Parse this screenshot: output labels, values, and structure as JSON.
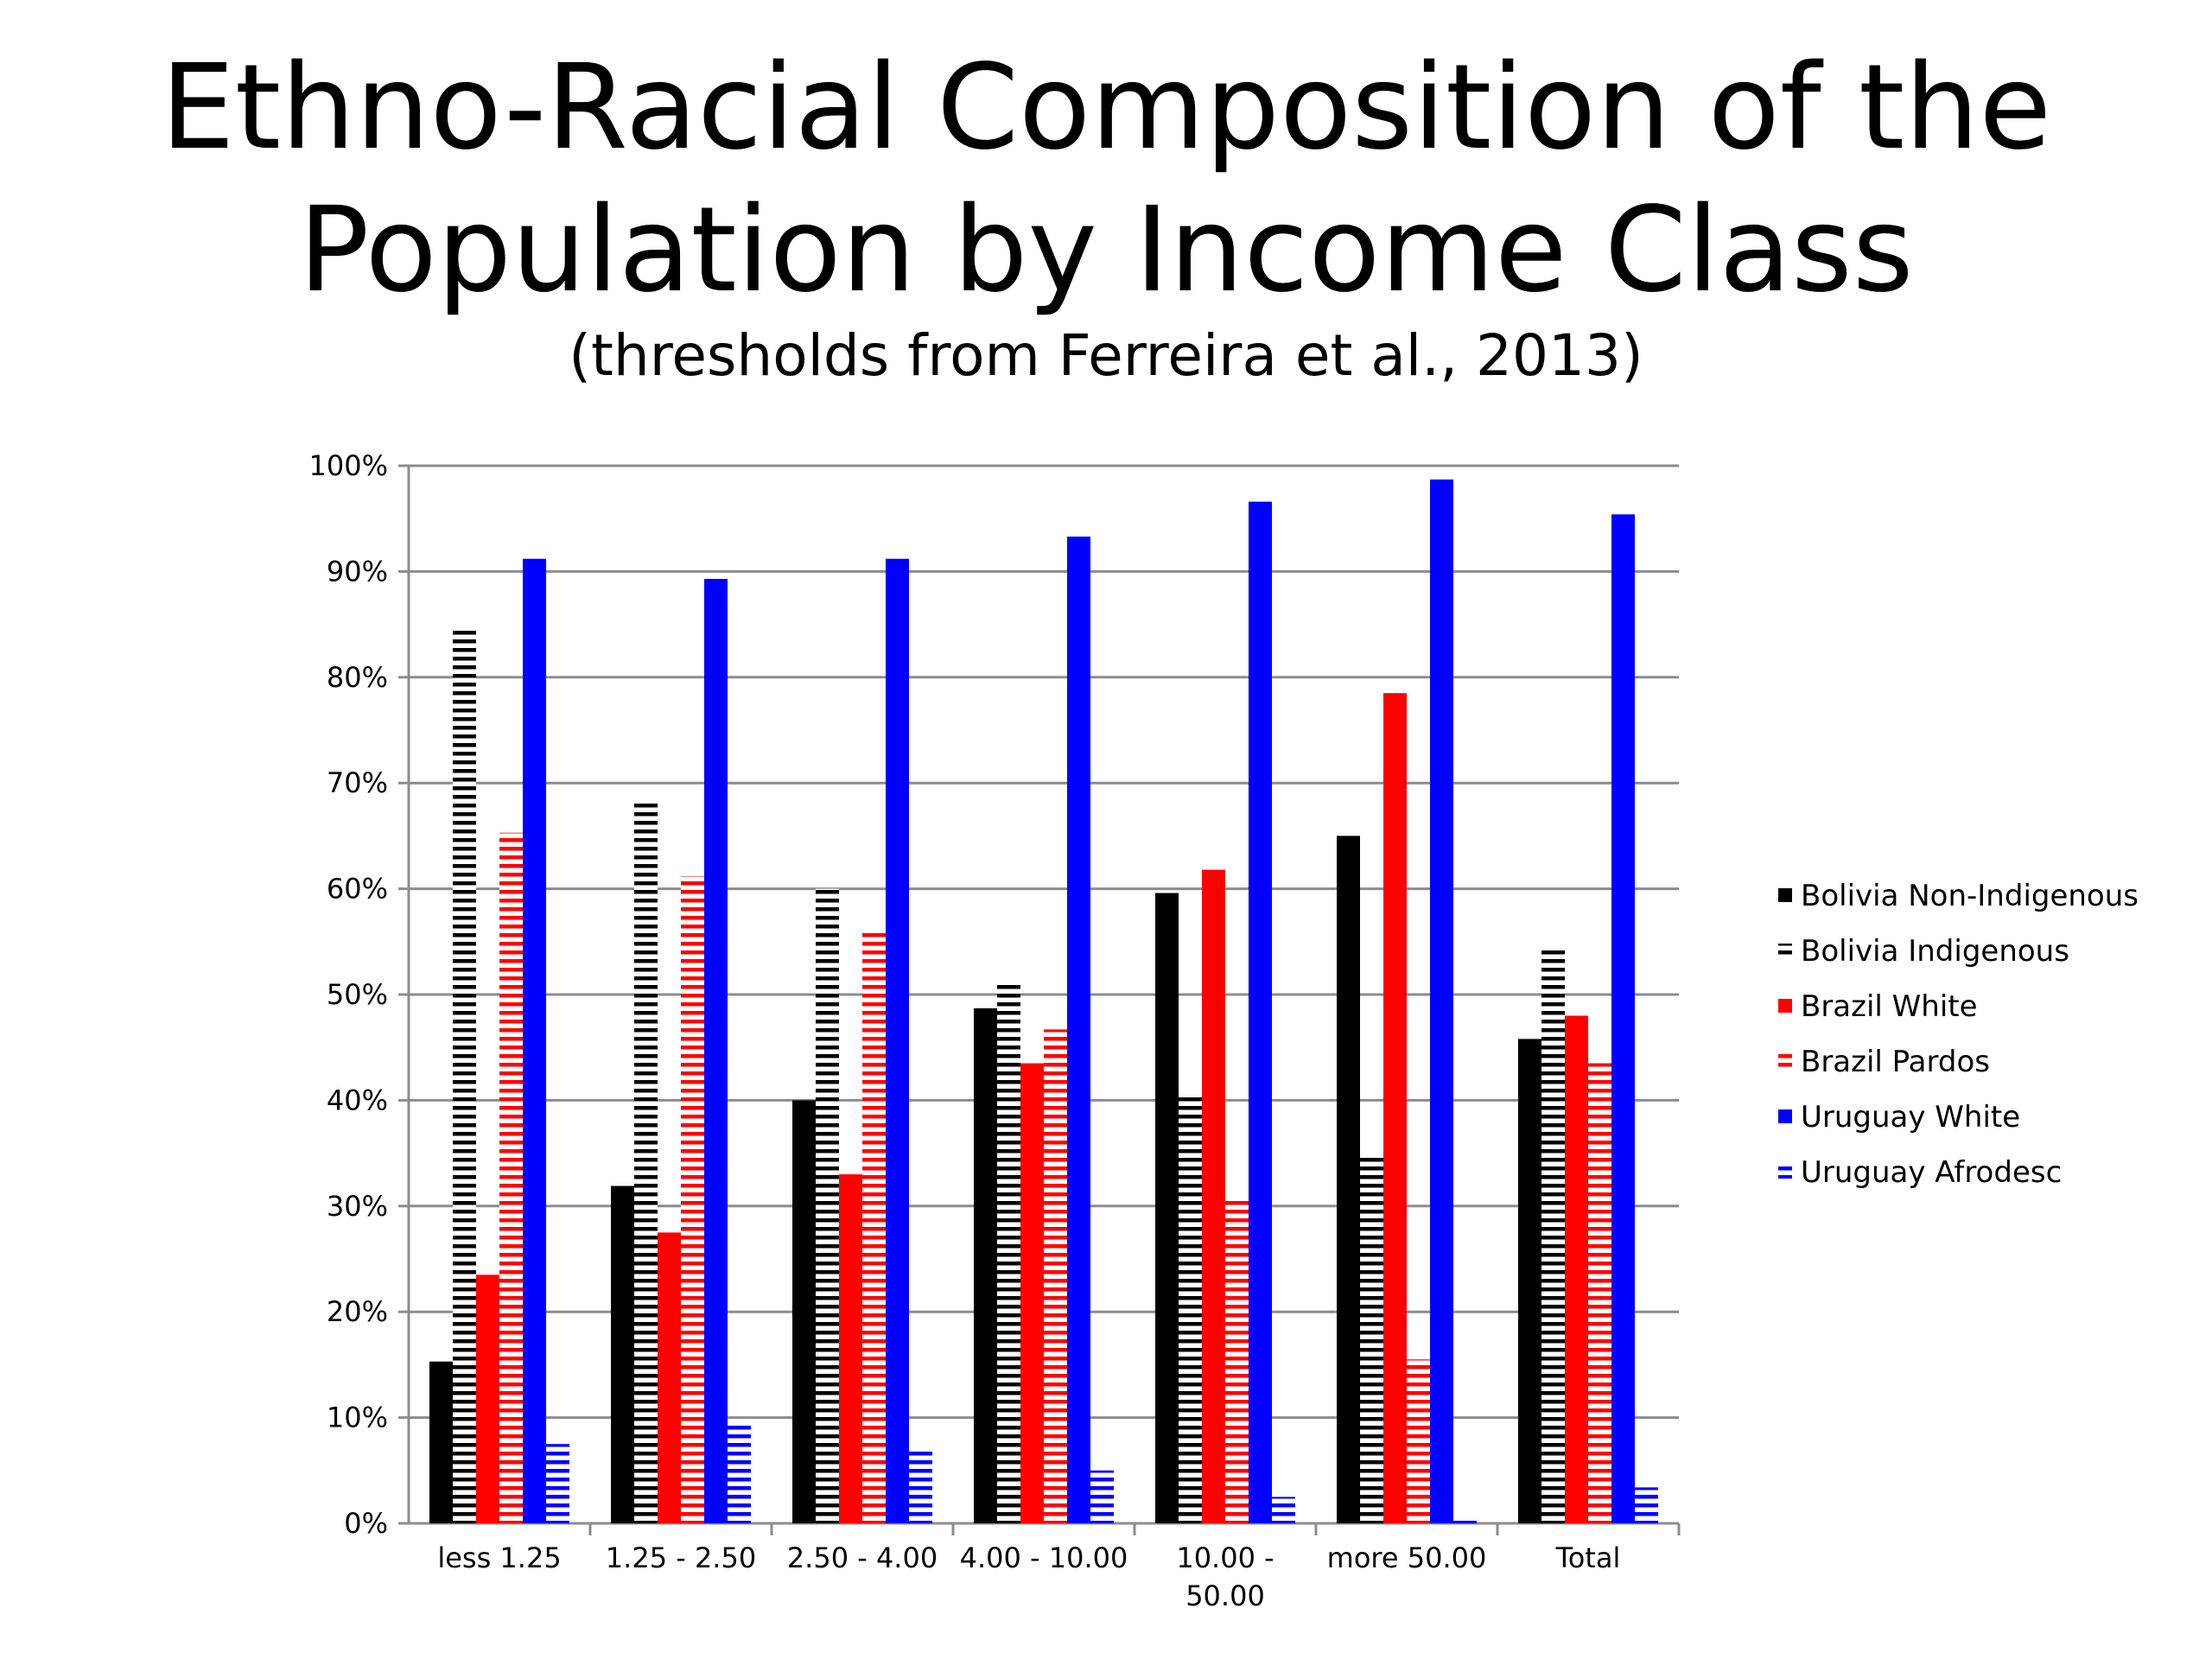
{
  "title_line1": "Ethno-Racial Composition of the",
  "title_line2": "Population by Income Class",
  "subtitle": "(thresholds from Ferreira et al., 2013)",
  "chart_data": {
    "type": "bar",
    "categories": [
      "less 1.25",
      "1.25 - 2.50",
      "2.50 -  4.00",
      "4.00 - 10.00",
      "10.00 - 50.00",
      "more 50.00",
      "Total"
    ],
    "category_lines": [
      [
        "less 1.25"
      ],
      [
        "1.25 - 2.50"
      ],
      [
        "2.50 -  4.00"
      ],
      [
        "4.00 - 10.00"
      ],
      [
        "10.00 -",
        "50.00"
      ],
      [
        "more 50.00"
      ],
      [
        "Total"
      ]
    ],
    "ylim": [
      0,
      100
    ],
    "yticks": [
      "0%",
      "10%",
      "20%",
      "30%",
      "40%",
      "50%",
      "60%",
      "70%",
      "80%",
      "90%",
      "100%"
    ],
    "grid": true,
    "legend_position": "right",
    "series": [
      {
        "name": "Bolivia Non-Indigenous",
        "color": "#000000",
        "pattern": "solid",
        "values": [
          15.3,
          31.9,
          40.0,
          48.7,
          59.6,
          65.0,
          45.8
        ]
      },
      {
        "name": "Bolivia Indigenous",
        "color": "#000000",
        "pattern": "hlines",
        "values": [
          84.7,
          68.1,
          60.0,
          51.3,
          40.4,
          35.0,
          54.2
        ]
      },
      {
        "name": "Brazil White",
        "color": "#ff0000",
        "pattern": "solid",
        "values": [
          23.5,
          27.5,
          33.0,
          43.5,
          61.8,
          78.5,
          48.0
        ]
      },
      {
        "name": "Brazil Pardos",
        "color": "#ff0000",
        "pattern": "hlines",
        "values": [
          65.3,
          61.2,
          56.0,
          46.7,
          30.5,
          15.5,
          43.5
        ]
      },
      {
        "name": "Uruguay White",
        "color": "#0000ff",
        "pattern": "solid",
        "values": [
          91.2,
          89.3,
          91.2,
          93.3,
          96.6,
          98.7,
          95.4
        ]
      },
      {
        "name": "Uruguay Afrodesc",
        "color": "#0000ff",
        "pattern": "hlines",
        "values": [
          7.5,
          9.6,
          7.0,
          5.0,
          2.5,
          0.6,
          3.4
        ]
      }
    ]
  }
}
